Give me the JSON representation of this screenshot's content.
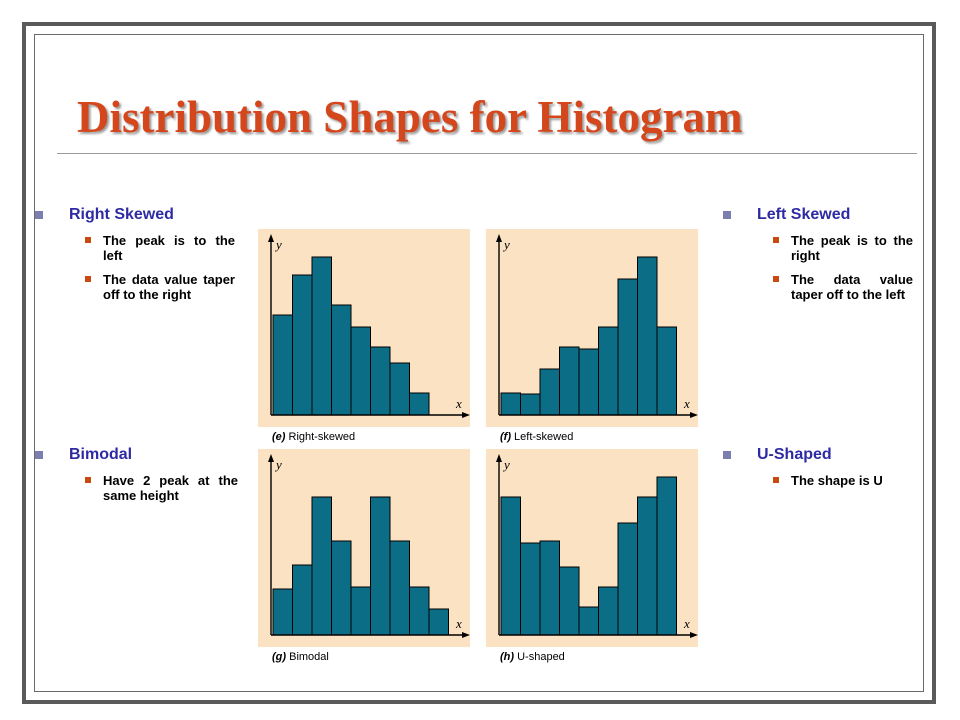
{
  "slide": {
    "title": "Distribution Shapes for Histogram",
    "colors": {
      "title": "#d4471c",
      "heading": "#2e2aa3",
      "bar": "#0c6e86",
      "panel_bg": "#fbe2c2",
      "bullet_l1": "#7b7fae",
      "bullet_l2": "#c84a12"
    }
  },
  "right_skewed": {
    "heading": "Right Skewed",
    "points": [
      "The peak is to the left",
      "The data value taper off to the right"
    ]
  },
  "left_skewed": {
    "heading": "Left Skewed",
    "points": [
      "The peak is to the right",
      "The data value taper off to the left"
    ]
  },
  "bimodal": {
    "heading": "Bimodal",
    "points": [
      "Have 2 peak at the same height"
    ]
  },
  "u_shaped": {
    "heading": "U-Shaped",
    "points": [
      "The shape is U"
    ]
  },
  "chart_data": [
    {
      "type": "bar",
      "panel": "e",
      "caption": "Right-skewed",
      "xlabel": "x",
      "ylabel": "y",
      "values": [
        5,
        7,
        7.9,
        5.5,
        4.4,
        3.4,
        2.6,
        1.1
      ]
    },
    {
      "type": "bar",
      "panel": "f",
      "caption": "Left-skewed",
      "xlabel": "x",
      "ylabel": "y",
      "values": [
        1.1,
        1.05,
        2.3,
        3.4,
        3.3,
        4.4,
        6.8,
        7.9,
        4.4
      ]
    },
    {
      "type": "bar",
      "panel": "g",
      "caption": "Bimodal",
      "xlabel": "x",
      "ylabel": "y",
      "values": [
        2.3,
        3.5,
        6.9,
        4.7,
        2.4,
        6.9,
        4.7,
        2.4,
        1.3
      ]
    },
    {
      "type": "bar",
      "panel": "h",
      "caption": "U-shaped",
      "xlabel": "x",
      "ylabel": "y",
      "values": [
        6.9,
        4.6,
        4.7,
        3.4,
        1.4,
        2.4,
        5.6,
        6.9,
        7.9
      ]
    }
  ]
}
